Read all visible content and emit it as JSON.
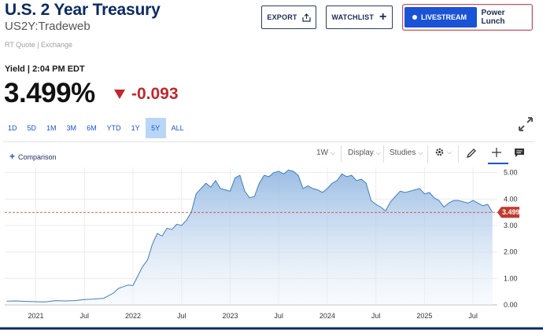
{
  "header": {
    "title": "U.S. 2 Year Treasury",
    "subtitle": "US2Y:Tradeweb",
    "quote_source": "RT Quote | Exchange"
  },
  "actions": {
    "export_label": "EXPORT",
    "watchlist_label": "WATCHLIST",
    "livestream_label": "LIVESTREAM",
    "livestream_show": "Power Lunch"
  },
  "quote": {
    "yield_time": "Yield | 2:04 PM EDT",
    "price": "3.499%",
    "change": "-0.093",
    "change_direction": "down",
    "change_color": "#c1272d"
  },
  "ranges": [
    "1D",
    "5D",
    "1M",
    "3M",
    "6M",
    "YTD",
    "1Y",
    "5Y",
    "ALL"
  ],
  "active_range": "5Y",
  "toolbar": {
    "comparison": "Comparison",
    "interval": "1W",
    "display": "Display",
    "studies": "Studies"
  },
  "chart_data": {
    "type": "area",
    "x_ticks": [
      "2021",
      "Jul",
      "2022",
      "Jul",
      "2023",
      "Jul",
      "2024",
      "Jul",
      "2025",
      "Jul"
    ],
    "y_ticks": [
      "5.00",
      "4.00",
      "3.00",
      "2.00",
      "1.00",
      "0.00"
    ],
    "ylim": [
      0,
      5.2
    ],
    "last_value_label": "3.499",
    "last_value": 3.499,
    "accent_color": "#3f7dc0",
    "last_price_color": "#c1392b",
    "x": [
      2020.7,
      2020.8,
      2020.9,
      2021.0,
      2021.1,
      2021.2,
      2021.3,
      2021.4,
      2021.5,
      2021.6,
      2021.7,
      2021.8,
      2021.85,
      2021.9,
      2021.95,
      2022.0,
      2022.05,
      2022.1,
      2022.15,
      2022.2,
      2022.25,
      2022.3,
      2022.35,
      2022.4,
      2022.45,
      2022.5,
      2022.55,
      2022.6,
      2022.65,
      2022.7,
      2022.75,
      2022.8,
      2022.85,
      2022.9,
      2022.95,
      2023.0,
      2023.05,
      2023.1,
      2023.15,
      2023.2,
      2023.25,
      2023.3,
      2023.35,
      2023.4,
      2023.45,
      2023.5,
      2023.55,
      2023.6,
      2023.65,
      2023.7,
      2023.75,
      2023.8,
      2023.85,
      2023.9,
      2023.95,
      2024.0,
      2024.05,
      2024.1,
      2024.15,
      2024.2,
      2024.25,
      2024.3,
      2024.35,
      2024.4,
      2024.45,
      2024.5,
      2024.55,
      2024.6,
      2024.65,
      2024.7,
      2024.75,
      2024.8,
      2024.85,
      2024.9,
      2024.95,
      2025.0,
      2025.05,
      2025.1,
      2025.15,
      2025.2,
      2025.25,
      2025.3,
      2025.35,
      2025.4,
      2025.45,
      2025.5,
      2025.55,
      2025.6,
      2025.65,
      2025.7
    ],
    "values": [
      0.14,
      0.15,
      0.13,
      0.12,
      0.11,
      0.16,
      0.15,
      0.16,
      0.2,
      0.22,
      0.25,
      0.45,
      0.62,
      0.69,
      0.75,
      0.73,
      1.1,
      1.45,
      1.7,
      2.3,
      2.7,
      2.6,
      2.9,
      2.85,
      3.05,
      3.0,
      3.2,
      3.5,
      4.2,
      4.4,
      4.6,
      4.45,
      4.7,
      4.4,
      4.35,
      4.3,
      4.8,
      4.9,
      4.3,
      4.05,
      4.1,
      4.6,
      4.9,
      4.85,
      5.0,
      5.05,
      4.95,
      5.1,
      5.05,
      4.9,
      4.4,
      4.5,
      4.4,
      4.35,
      4.25,
      4.4,
      4.6,
      4.7,
      4.95,
      4.85,
      4.9,
      4.7,
      4.75,
      4.6,
      3.95,
      3.8,
      3.7,
      3.55,
      3.9,
      4.1,
      4.3,
      4.25,
      4.3,
      4.35,
      4.4,
      4.2,
      4.25,
      4.05,
      3.95,
      3.7,
      3.85,
      3.95,
      3.95,
      3.9,
      3.85,
      3.95,
      3.85,
      3.75,
      3.8,
      3.499
    ]
  }
}
